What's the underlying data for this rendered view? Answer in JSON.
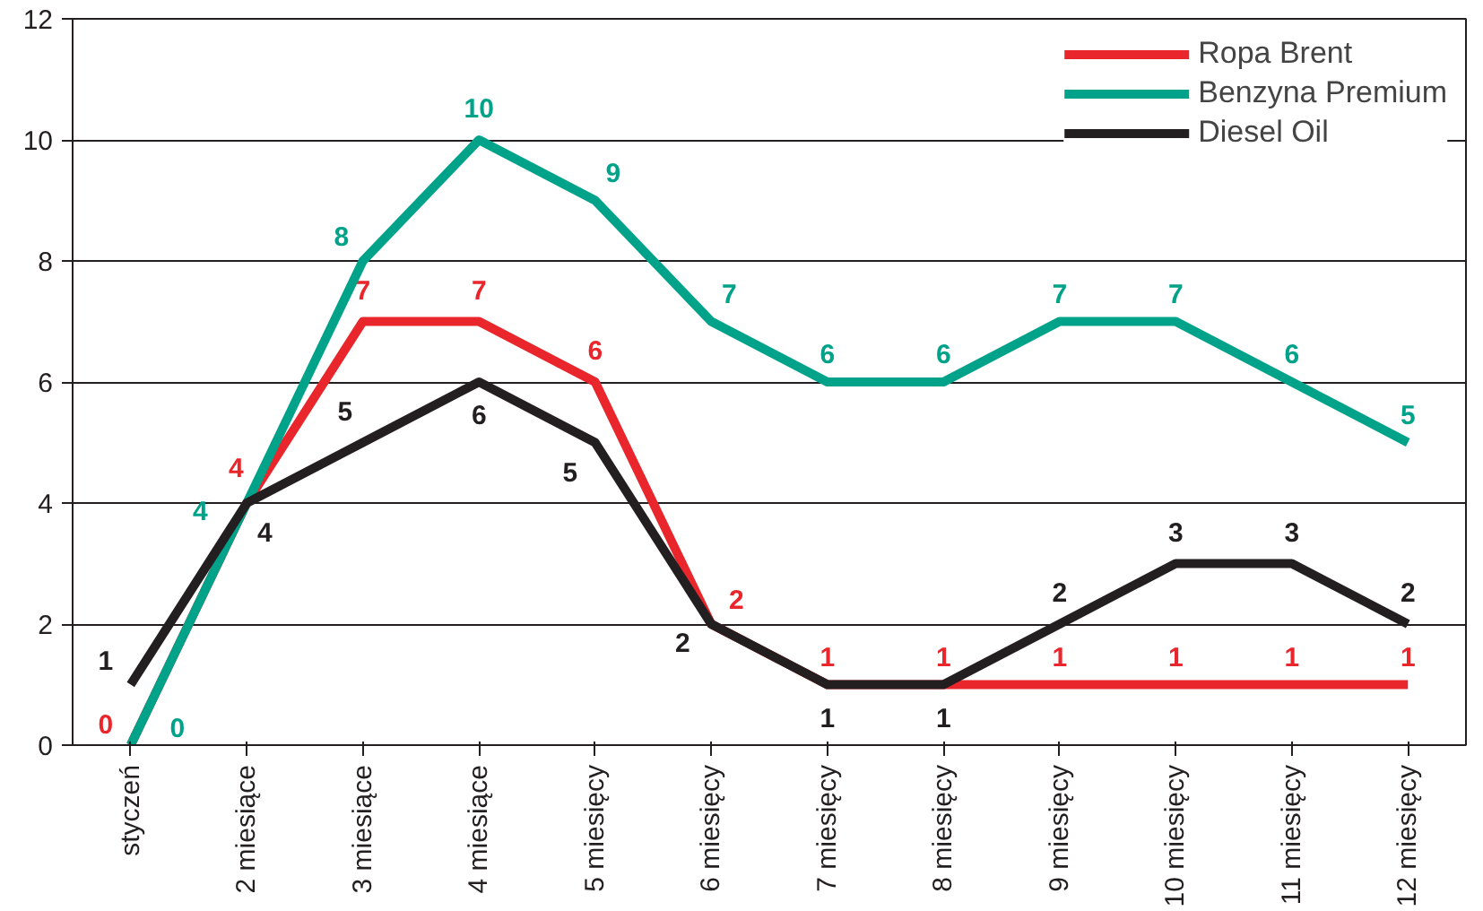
{
  "chart_data": {
    "type": "line",
    "categories": [
      "styczeń",
      "2 miesiące",
      "3 miesiące",
      "4 miesiące",
      "5 miesięcy",
      "6 miesięcy",
      "7 miesięcy",
      "8 miesięcy",
      "9 miesięcy",
      "10 miesięcy",
      "11 miesięcy",
      "12 miesięcy"
    ],
    "series": [
      {
        "name": "Ropa Brent",
        "color": "#e8262b",
        "values": [
          0,
          4,
          7,
          7,
          6,
          2,
          1,
          1,
          1,
          1,
          1,
          1
        ]
      },
      {
        "name": "Benzyna Premium",
        "color": "#00a389",
        "values": [
          0,
          4,
          8,
          10,
          9,
          7,
          6,
          6,
          7,
          7,
          6,
          5
        ]
      },
      {
        "name": "Diesel Oil",
        "color": "#231f20",
        "values": [
          1,
          4,
          5,
          6,
          5,
          2,
          1,
          1,
          2,
          3,
          3,
          2
        ]
      }
    ],
    "ylim": [
      0,
      12
    ],
    "yticks": [
      0,
      2,
      4,
      6,
      8,
      10,
      12
    ],
    "grid": "y",
    "legend": "top right",
    "data_labels": true,
    "marker": "none",
    "line_style": "solid"
  }
}
